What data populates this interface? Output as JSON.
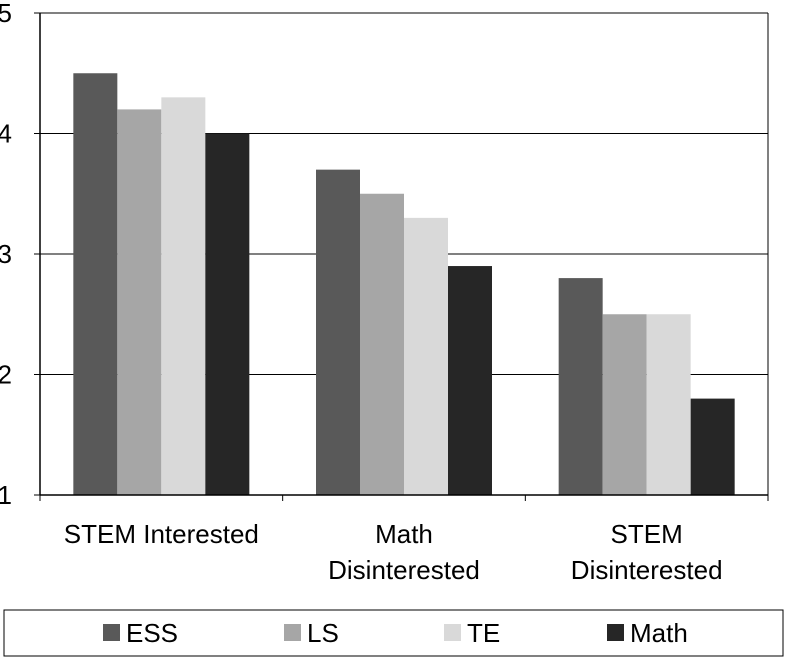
{
  "chart_data": {
    "type": "bar",
    "categories": [
      [
        "STEM Interested"
      ],
      [
        "Math",
        "Disinterested"
      ],
      [
        "STEM",
        "Disinterested"
      ]
    ],
    "series": [
      {
        "name": "ESS",
        "color": "#595959",
        "values": [
          4.5,
          3.7,
          2.8
        ]
      },
      {
        "name": "LS",
        "color": "#a6a6a6",
        "values": [
          4.2,
          3.5,
          2.5
        ]
      },
      {
        "name": "TE",
        "color": "#d9d9d9",
        "values": [
          4.3,
          3.3,
          2.5
        ]
      },
      {
        "name": "Math",
        "color": "#262626",
        "values": [
          4.0,
          2.9,
          1.8
        ]
      }
    ],
    "yticks": [
      "1",
      "2",
      "3",
      "4",
      "5"
    ],
    "ylim": [
      1,
      5
    ],
    "grid": true,
    "legend_position": "bottom",
    "title": "",
    "xlabel": "",
    "ylabel": ""
  }
}
